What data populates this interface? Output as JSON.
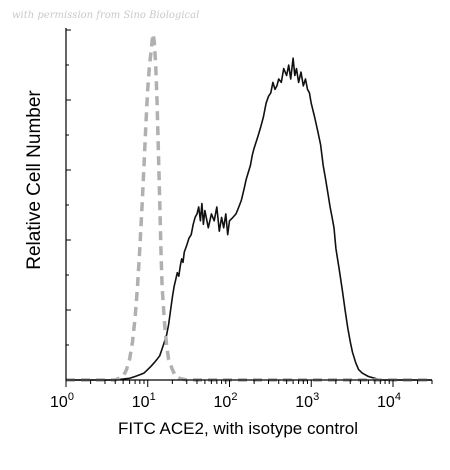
{
  "watermark": "with permission from Sino Biological",
  "chart_data": {
    "type": "line",
    "title": "",
    "xlabel": "FITC ACE2, with isotype control",
    "ylabel": "Relative Cell Number",
    "xscale": "log",
    "xlim": [
      1,
      30000
    ],
    "ylim": [
      0,
      100
    ],
    "x_ticks": [
      {
        "value": 1,
        "base": "10",
        "exp": "0"
      },
      {
        "value": 10,
        "base": "10",
        "exp": "1"
      },
      {
        "value": 100,
        "base": "10",
        "exp": "2"
      },
      {
        "value": 1000,
        "base": "10",
        "exp": "3"
      },
      {
        "value": 10000,
        "base": "10",
        "exp": "4"
      }
    ],
    "grid": false,
    "legend": "none",
    "series": [
      {
        "style": "solid",
        "color": "#111111",
        "points": [
          [
            1,
            0
          ],
          [
            4,
            0
          ],
          [
            6,
            0.5
          ],
          [
            7,
            1
          ],
          [
            8,
            1.5
          ],
          [
            9,
            2
          ],
          [
            10,
            3
          ],
          [
            11,
            4
          ],
          [
            12,
            5
          ],
          [
            13,
            6
          ],
          [
            14,
            7
          ],
          [
            15,
            9
          ],
          [
            16,
            11
          ],
          [
            17,
            13
          ],
          [
            18,
            16
          ],
          [
            19,
            20
          ],
          [
            20,
            24
          ],
          [
            21,
            27
          ],
          [
            22,
            29
          ],
          [
            23,
            31
          ],
          [
            24,
            30
          ],
          [
            25,
            33
          ],
          [
            26,
            35
          ],
          [
            27,
            34
          ],
          [
            28,
            37
          ],
          [
            30,
            39
          ],
          [
            32,
            41
          ],
          [
            34,
            42
          ],
          [
            36,
            45
          ],
          [
            38,
            47
          ],
          [
            40,
            48
          ],
          [
            42,
            50
          ],
          [
            44,
            46
          ],
          [
            46,
            51
          ],
          [
            48,
            45
          ],
          [
            50,
            49
          ],
          [
            55,
            44
          ],
          [
            60,
            48
          ],
          [
            65,
            46
          ],
          [
            70,
            50
          ],
          [
            75,
            43
          ],
          [
            80,
            47
          ],
          [
            85,
            44
          ],
          [
            90,
            48
          ],
          [
            95,
            42
          ],
          [
            100,
            46
          ],
          [
            110,
            47
          ],
          [
            120,
            48
          ],
          [
            130,
            50
          ],
          [
            140,
            52
          ],
          [
            150,
            55
          ],
          [
            160,
            58
          ],
          [
            170,
            60
          ],
          [
            180,
            62
          ],
          [
            190,
            65
          ],
          [
            200,
            67
          ],
          [
            220,
            70
          ],
          [
            240,
            73
          ],
          [
            260,
            76
          ],
          [
            280,
            80
          ],
          [
            300,
            82
          ],
          [
            320,
            83
          ],
          [
            340,
            86
          ],
          [
            360,
            84
          ],
          [
            380,
            85
          ],
          [
            400,
            87
          ],
          [
            430,
            86
          ],
          [
            460,
            90
          ],
          [
            500,
            88
          ],
          [
            530,
            91
          ],
          [
            560,
            87
          ],
          [
            600,
            93
          ],
          [
            630,
            88
          ],
          [
            660,
            90
          ],
          [
            700,
            86
          ],
          [
            750,
            89
          ],
          [
            800,
            85
          ],
          [
            850,
            87
          ],
          [
            900,
            84
          ],
          [
            950,
            83
          ],
          [
            1000,
            80
          ],
          [
            1100,
            76
          ],
          [
            1200,
            72
          ],
          [
            1300,
            68
          ],
          [
            1400,
            62
          ],
          [
            1500,
            58
          ],
          [
            1600,
            54
          ],
          [
            1700,
            50
          ],
          [
            1800,
            47
          ],
          [
            1900,
            44
          ],
          [
            2000,
            38
          ],
          [
            2200,
            32
          ],
          [
            2400,
            26
          ],
          [
            2600,
            20
          ],
          [
            2800,
            15
          ],
          [
            3000,
            11
          ],
          [
            3200,
            8
          ],
          [
            3500,
            5
          ],
          [
            3800,
            3
          ],
          [
            4200,
            2
          ],
          [
            5000,
            1
          ],
          [
            6000,
            0.5
          ],
          [
            7000,
            0
          ],
          [
            30000,
            0
          ]
        ]
      },
      {
        "style": "dashed",
        "color": "#b0b0b0",
        "points": [
          [
            1,
            0
          ],
          [
            4,
            0
          ],
          [
            5,
            1
          ],
          [
            5.5,
            3
          ],
          [
            6,
            6
          ],
          [
            6.5,
            11
          ],
          [
            7,
            18
          ],
          [
            7.5,
            27
          ],
          [
            8,
            38
          ],
          [
            8.5,
            50
          ],
          [
            9,
            62
          ],
          [
            9.5,
            74
          ],
          [
            10,
            84
          ],
          [
            10.5,
            91
          ],
          [
            11,
            95
          ],
          [
            11.3,
            98
          ],
          [
            11.6,
            100
          ],
          [
            12,
            98
          ],
          [
            12.5,
            91
          ],
          [
            13,
            80
          ],
          [
            13.5,
            66
          ],
          [
            14,
            52
          ],
          [
            14.5,
            38
          ],
          [
            15,
            27
          ],
          [
            16,
            17
          ],
          [
            17,
            10
          ],
          [
            18,
            6
          ],
          [
            20,
            3
          ],
          [
            22,
            1
          ],
          [
            25,
            0.4
          ],
          [
            30,
            0
          ],
          [
            30000,
            0
          ]
        ]
      }
    ]
  }
}
